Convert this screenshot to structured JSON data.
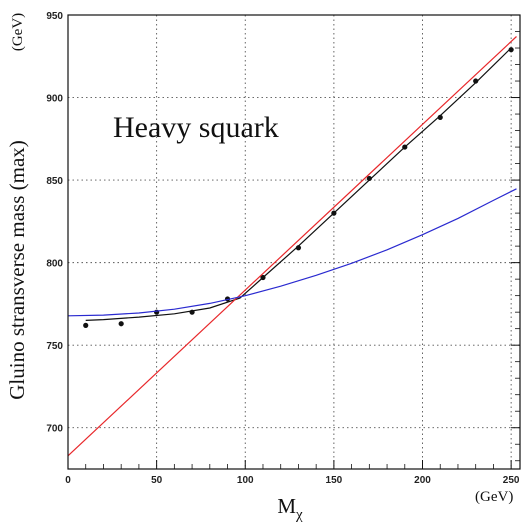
{
  "chart_data": {
    "type": "line",
    "title": "",
    "annotation": "Heavy squark",
    "xlabel": "M",
    "xlabel_subscript": "χ",
    "x_unit": "(GeV)",
    "ylabel": "Gluino stransverse mass (max)",
    "y_unit": "(GeV)",
    "xlim": [
      0,
      255
    ],
    "ylim": [
      675,
      950
    ],
    "x_ticks": [
      0,
      50,
      100,
      150,
      200,
      250
    ],
    "y_ticks": [
      700,
      750,
      800,
      850,
      900,
      950
    ],
    "grid": true,
    "colors": {
      "red": "#e8282b",
      "blue": "#2a2ad0",
      "black": "#111111"
    },
    "series": [
      {
        "style": "points",
        "color": "black",
        "x": [
          10,
          30,
          50,
          70,
          90,
          110,
          130,
          150,
          170,
          190,
          210,
          230,
          250
        ],
        "y": [
          762,
          763,
          770,
          770,
          778,
          791,
          809,
          830,
          851,
          870,
          888,
          910,
          929
        ]
      },
      {
        "style": "line",
        "color": "black",
        "x": [
          10,
          20,
          40,
          60,
          80,
          97,
          110,
          130,
          150,
          170,
          190,
          210,
          230,
          250
        ],
        "y": [
          765,
          765.5,
          767,
          769,
          772.5,
          778.5,
          791,
          810,
          830,
          850,
          870,
          889,
          909,
          930
        ]
      },
      {
        "style": "line",
        "color": "red",
        "x": [
          0,
          253
        ],
        "y": [
          683,
          937
        ]
      },
      {
        "style": "line",
        "color": "blue",
        "x": [
          0,
          20,
          40,
          60,
          80,
          100,
          120,
          140,
          160,
          180,
          200,
          220,
          240,
          253
        ],
        "y": [
          767.8,
          768.2,
          769.5,
          771.8,
          775.3,
          780,
          785.7,
          792.3,
          799.6,
          807.8,
          816.9,
          826.8,
          837.7,
          844.7
        ]
      }
    ]
  }
}
